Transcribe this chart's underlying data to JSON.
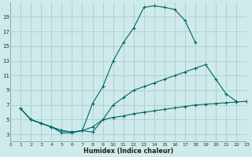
{
  "bg_color": "#ceeaea",
  "grid_color": "#aacece",
  "line_color": "#006666",
  "xlabel": "Humidex (Indice chaleur)",
  "xlim": [
    0,
    23
  ],
  "ylim": [
    2,
    21
  ],
  "xticks": [
    0,
    1,
    2,
    3,
    4,
    5,
    6,
    7,
    8,
    9,
    10,
    11,
    12,
    13,
    14,
    15,
    16,
    17,
    18,
    19,
    20,
    21,
    22,
    23
  ],
  "yticks": [
    3,
    5,
    7,
    9,
    11,
    13,
    15,
    17,
    19
  ],
  "curve1_x": [
    1,
    2,
    3,
    4,
    5,
    6,
    7,
    8,
    9,
    10,
    11,
    12,
    13,
    14,
    15,
    16,
    17,
    18
  ],
  "curve1_y": [
    6.5,
    5.0,
    4.5,
    4.0,
    3.2,
    3.2,
    3.5,
    7.2,
    9.5,
    13.0,
    15.5,
    17.5,
    20.3,
    20.5,
    20.3,
    20.0,
    18.5,
    15.5
  ],
  "curve2_x": [
    1,
    2,
    3,
    4,
    5,
    6,
    7,
    8,
    9,
    10,
    11,
    12,
    13,
    14,
    15,
    16,
    17,
    18,
    19,
    20,
    21,
    22
  ],
  "curve2_y": [
    6.5,
    5.0,
    4.5,
    4.0,
    3.5,
    3.3,
    3.5,
    3.3,
    5.0,
    7.0,
    8.0,
    9.0,
    9.5,
    10.0,
    10.5,
    11.0,
    11.5,
    12.0,
    12.5,
    10.5,
    8.5,
    7.5
  ],
  "curve3_x": [
    1,
    2,
    3,
    4,
    5,
    6,
    7,
    8,
    9,
    10,
    11,
    12,
    13,
    14,
    15,
    16,
    17,
    18,
    19,
    20,
    21,
    22,
    23
  ],
  "curve3_y": [
    6.5,
    5.0,
    4.5,
    4.0,
    3.5,
    3.3,
    3.5,
    4.0,
    5.0,
    5.3,
    5.5,
    5.8,
    6.0,
    6.2,
    6.4,
    6.6,
    6.8,
    7.0,
    7.1,
    7.2,
    7.3,
    7.4,
    7.5
  ]
}
